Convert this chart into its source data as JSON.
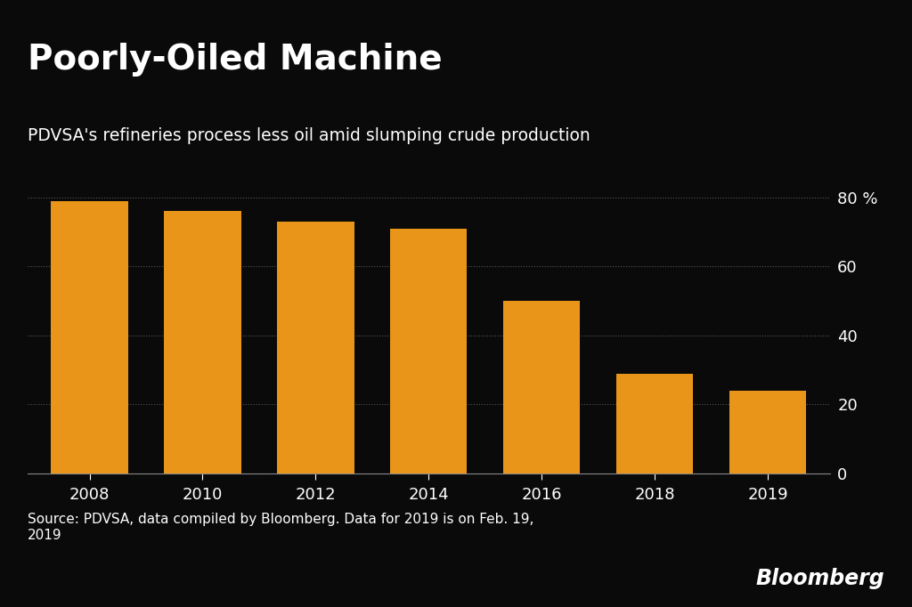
{
  "categories": [
    "2008",
    "2010",
    "2012",
    "2014",
    "2016",
    "2018",
    "2019"
  ],
  "values": [
    79,
    76,
    73,
    71,
    50,
    29,
    24
  ],
  "bar_color": "#E8951A",
  "background_color": "#0a0a0a",
  "title": "Poorly-Oiled Machine",
  "subtitle": "PDVSA's refineries process less oil amid slumping crude production",
  "ylabel_unit": "%",
  "yticks": [
    0,
    20,
    40,
    60,
    80
  ],
  "ylim": [
    0,
    88
  ],
  "source_text": "Source: PDVSA, data compiled by Bloomberg. Data for 2019 is on Feb. 19,\n2019",
  "bloomberg_text": "Bloomberg",
  "title_fontsize": 28,
  "subtitle_fontsize": 13.5,
  "tick_fontsize": 13,
  "source_fontsize": 11,
  "bloomberg_fontsize": 17,
  "text_color": "#FFFFFF",
  "grid_color": "#555555",
  "spine_color": "#888888"
}
